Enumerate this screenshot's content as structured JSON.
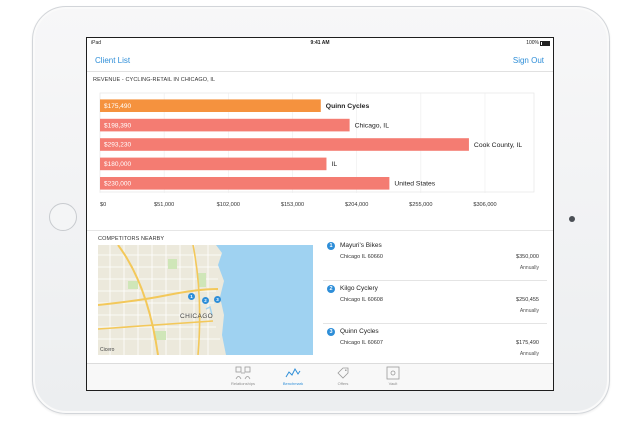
{
  "status_bar": {
    "device": "iPad",
    "time": "9:41 AM",
    "battery": "100%"
  },
  "nav": {
    "left": "Client List",
    "right": "Sign Out"
  },
  "revenue_title": "REVENUE - CYCLING-RETAIL IN CHICAGO, IL",
  "competitors_title": "COMPETITORS NEARBY",
  "chart_data": {
    "type": "bar",
    "orientation": "horizontal",
    "title": "REVENUE - CYCLING-RETAIL IN CHICAGO, IL",
    "categories": [
      "Quinn Cycles",
      "Chicago, IL",
      "Cook County, IL",
      "IL",
      "United States"
    ],
    "values": [
      175490,
      198390,
      293230,
      180000,
      230000
    ],
    "value_labels": [
      "$175,490",
      "$198,390",
      "$293,230",
      "$180,000",
      "$230,000"
    ],
    "xlim": [
      0,
      306000
    ],
    "ticks": [
      "$0",
      "$51,000",
      "$102,000",
      "$153,000",
      "$204,000",
      "$255,000",
      "$306,000"
    ],
    "tick_values": [
      0,
      51000,
      102000,
      153000,
      204000,
      255000,
      306000
    ],
    "highlight_index": 0,
    "colors": {
      "highlight": "#f5923e",
      "default": "#f47c72"
    },
    "grid": true
  },
  "map": {
    "city_label": "CHICAGO",
    "corner_label": "Cicero",
    "pins": [
      "1",
      "2",
      "3"
    ],
    "colors": {
      "water": "#9fd2f1",
      "land": "#ece9dc",
      "park": "#cfe6b8",
      "road": "#f3c85a"
    }
  },
  "competitors": [
    {
      "num": "1",
      "name": "Mayuri's Bikes",
      "address": "Chicago IL 60660",
      "revenue": "$350,000",
      "period": "Annually"
    },
    {
      "num": "2",
      "name": "Kilgo Cyclery",
      "address": "Chicago IL 60608",
      "revenue": "$250,455",
      "period": "Annually"
    },
    {
      "num": "3",
      "name": "Quinn Cycles",
      "address": "Chicago IL 60607",
      "revenue": "$175,490",
      "period": "Annually"
    }
  ],
  "tabs": [
    {
      "label": "Relationships",
      "icon": "people-icon"
    },
    {
      "label": "Benchmark",
      "icon": "benchmark-icon"
    },
    {
      "label": "Offers",
      "icon": "tag-icon"
    },
    {
      "label": "Vault",
      "icon": "vault-icon"
    }
  ],
  "active_tab": 1
}
